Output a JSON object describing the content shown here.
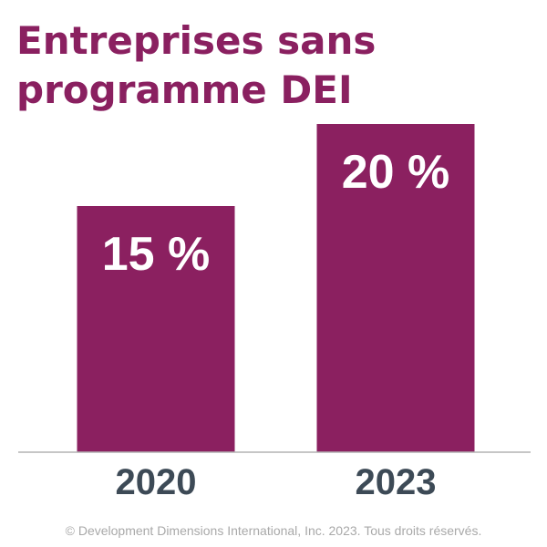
{
  "title": "Entreprises sans programme DEI",
  "footer": "© Development Dimensions International, Inc. 2023. Tous droits réservés.",
  "colors": {
    "bar": "#8b2060",
    "bar_label": "#ffffff",
    "axis_label": "#3d4a56",
    "axis_line": "#b3b3b3",
    "title": "#8a2060",
    "footer": "#a9a9a9"
  },
  "chart_data": {
    "type": "bar",
    "categories": [
      "2020",
      "2023"
    ],
    "values": [
      15,
      20
    ],
    "value_labels": [
      "15 %",
      "20 %"
    ],
    "unit": "%",
    "ylim": [
      0,
      20
    ],
    "grid": false,
    "legend": "none"
  }
}
